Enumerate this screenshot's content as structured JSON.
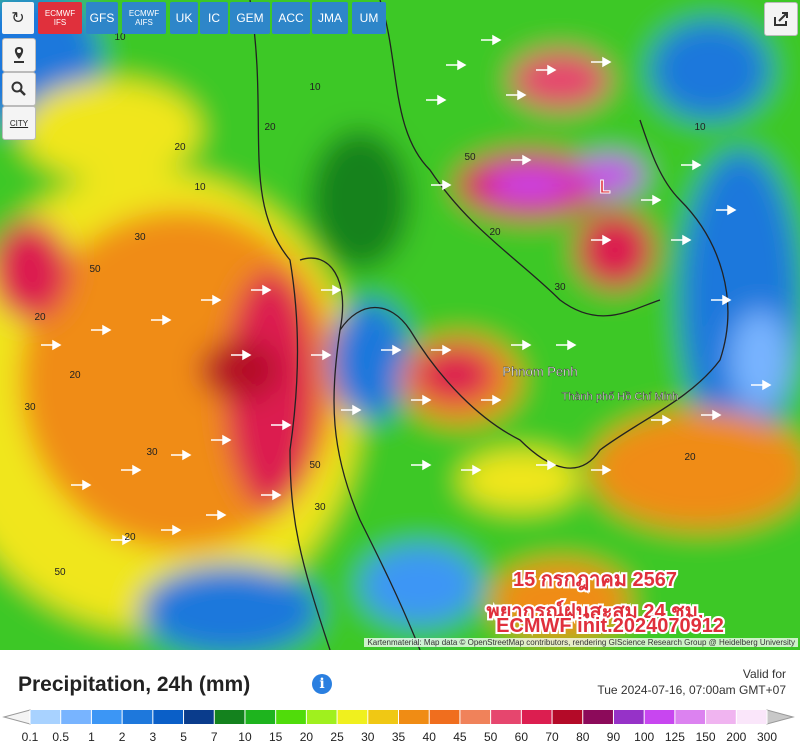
{
  "toolbar": {
    "models": [
      "ECMWF IFS",
      "GFS",
      "ECMWF AIFS",
      "UK",
      "IC",
      "GEM",
      "ACC",
      "JMA",
      "UM"
    ],
    "city_button": "CITY"
  },
  "map": {
    "place_labels": [
      "Phnom Penh",
      "Thành phố Hồ Chí Minh",
      "L"
    ],
    "contour_labels": [
      "10",
      "20",
      "30",
      "50",
      "20",
      "30",
      "20",
      "10",
      "30",
      "50",
      "20",
      "30",
      "20",
      "10",
      "50",
      "20",
      "30",
      "10",
      "20",
      "50"
    ],
    "overlay": [
      "พยากรณ์ฝนสะสม 24 ชม.",
      "15 กรกฎาคม 2567",
      "ECMWF init.2024070912"
    ],
    "attribution": "Kartenmaterial: Map data © OpenStreetMap contributors, rendering GIScience Research Group @ Heidelberg University"
  },
  "legend": {
    "title": "Precipitation, 24h (mm)",
    "valid_label": "Valid for",
    "valid_time": "Tue 2024-07-16, 07:00am GMT+07",
    "ticks": [
      0.1,
      0.5,
      1,
      2,
      3,
      5,
      7,
      10,
      15,
      20,
      25,
      30,
      35,
      40,
      45,
      50,
      60,
      70,
      80,
      90,
      100,
      125,
      150,
      200,
      300
    ],
    "colors": [
      "#a8d2ff",
      "#78b4ff",
      "#3c96f5",
      "#1e78dc",
      "#0a5fc8",
      "#0a3c8c",
      "#14821e",
      "#1eb41e",
      "#50dc0a",
      "#a0f01e",
      "#f0f01e",
      "#f0c814",
      "#f08c14",
      "#f06e1e",
      "#f0825a",
      "#e6466e",
      "#dc1e50",
      "#b40a28",
      "#8c0a5a",
      "#9632c8",
      "#c846f0",
      "#dc82f0",
      "#f0b4f0",
      "#fae6fa"
    ]
  }
}
